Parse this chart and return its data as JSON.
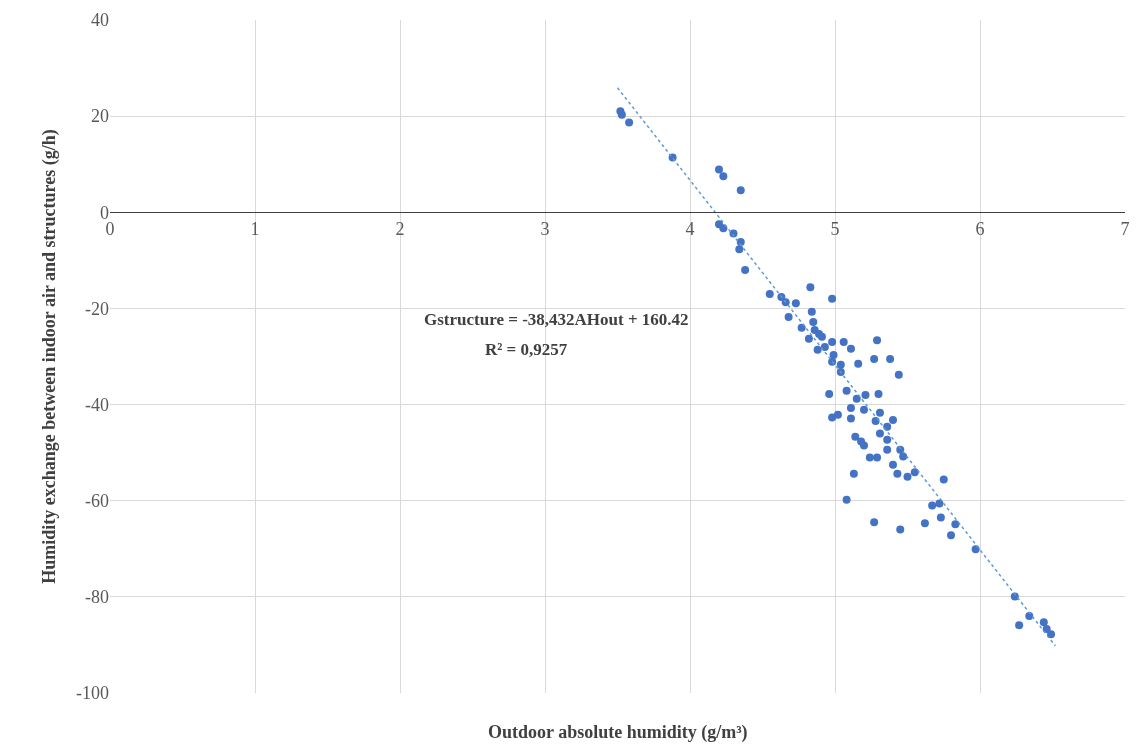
{
  "chart_data": {
    "type": "scatter",
    "xlabel": "Outdoor absolute humidity (g/m³)",
    "ylabel": "Humidity exchange between indoor air and structures (g/h)",
    "annotations": [
      "Gstructure = -38,432AHout + 160.42",
      "R² = 0,9257"
    ],
    "xlim": [
      0,
      7
    ],
    "xticks": [
      0,
      1,
      2,
      3,
      4,
      5,
      6,
      7
    ],
    "ylim": [
      -100,
      40
    ],
    "yticks": [
      -100,
      -80,
      -60,
      -40,
      -20,
      0,
      20,
      40
    ],
    "grid": true,
    "marker": "circle",
    "series": [
      {
        "color": "#4472c4",
        "x": [
          3.52,
          3.53,
          3.58,
          3.88,
          4.2,
          4.23,
          4.35,
          4.2,
          4.23,
          4.3,
          4.35,
          4.34,
          4.38,
          4.83,
          4.55,
          4.63,
          4.66,
          4.73,
          4.98,
          4.68,
          4.84,
          4.77,
          4.85,
          4.86,
          4.89,
          4.82,
          4.91,
          4.88,
          4.93,
          4.98,
          5.06,
          5.11,
          5.29,
          4.99,
          4.98,
          5.04,
          5.04,
          5.16,
          5.27,
          5.38,
          5.44,
          4.96,
          5.08,
          5.15,
          5.21,
          5.3,
          5.11,
          5.2,
          5.31,
          4.98,
          5.02,
          5.11,
          5.28,
          5.4,
          5.36,
          5.31,
          5.14,
          5.18,
          5.2,
          5.36,
          5.36,
          5.45,
          5.47,
          5.24,
          5.29,
          5.4,
          5.13,
          5.43,
          5.5,
          5.55,
          5.75,
          5.08,
          5.67,
          5.72,
          5.73,
          5.27,
          5.45,
          5.62,
          5.83,
          5.8,
          5.97,
          6.24,
          6.27,
          6.34,
          6.44,
          6.46,
          6.49
        ],
        "values": [
          21,
          20.3,
          18.7,
          11.4,
          8.9,
          7.5,
          4.6,
          -2.5,
          -3.3,
          -4.4,
          -6.2,
          -7.7,
          -12,
          -15.6,
          -17,
          -17.6,
          -18.7,
          -18.9,
          -18,
          -21.8,
          -20.7,
          -24,
          -22.8,
          -24.5,
          -25.3,
          -26.3,
          -25.9,
          -28.6,
          -28,
          -27,
          -27,
          -28.4,
          -26.6,
          -29.7,
          -31.1,
          -31.7,
          -33.2,
          -31.5,
          -30.5,
          -30.5,
          -33.8,
          -37.8,
          -37.1,
          -38.8,
          -38,
          -37.8,
          -40.7,
          -41.1,
          -41.7,
          -42.7,
          -42.1,
          -42.9,
          -43.4,
          -43.2,
          -44.6,
          -46,
          -46.7,
          -47.7,
          -48.5,
          -47.3,
          -49.4,
          -49.4,
          -50.8,
          -51,
          -51,
          -52.5,
          -54.4,
          -54.4,
          -55,
          -54.1,
          -55.6,
          -59.8,
          -61,
          -60.6,
          -63.5,
          -64.5,
          -66,
          -64.7,
          -64.9,
          -67.2,
          -70.1,
          -79.9,
          -85.9,
          -84,
          -85.3,
          -86.7,
          -87.8
        ]
      },
      {
        "type": "line",
        "color": "#5b9bd5",
        "line_style": "dotted",
        "marker": "none",
        "x": [
          3.5,
          6.52
        ],
        "values": [
          25.9,
          -90.2
        ]
      }
    ]
  }
}
